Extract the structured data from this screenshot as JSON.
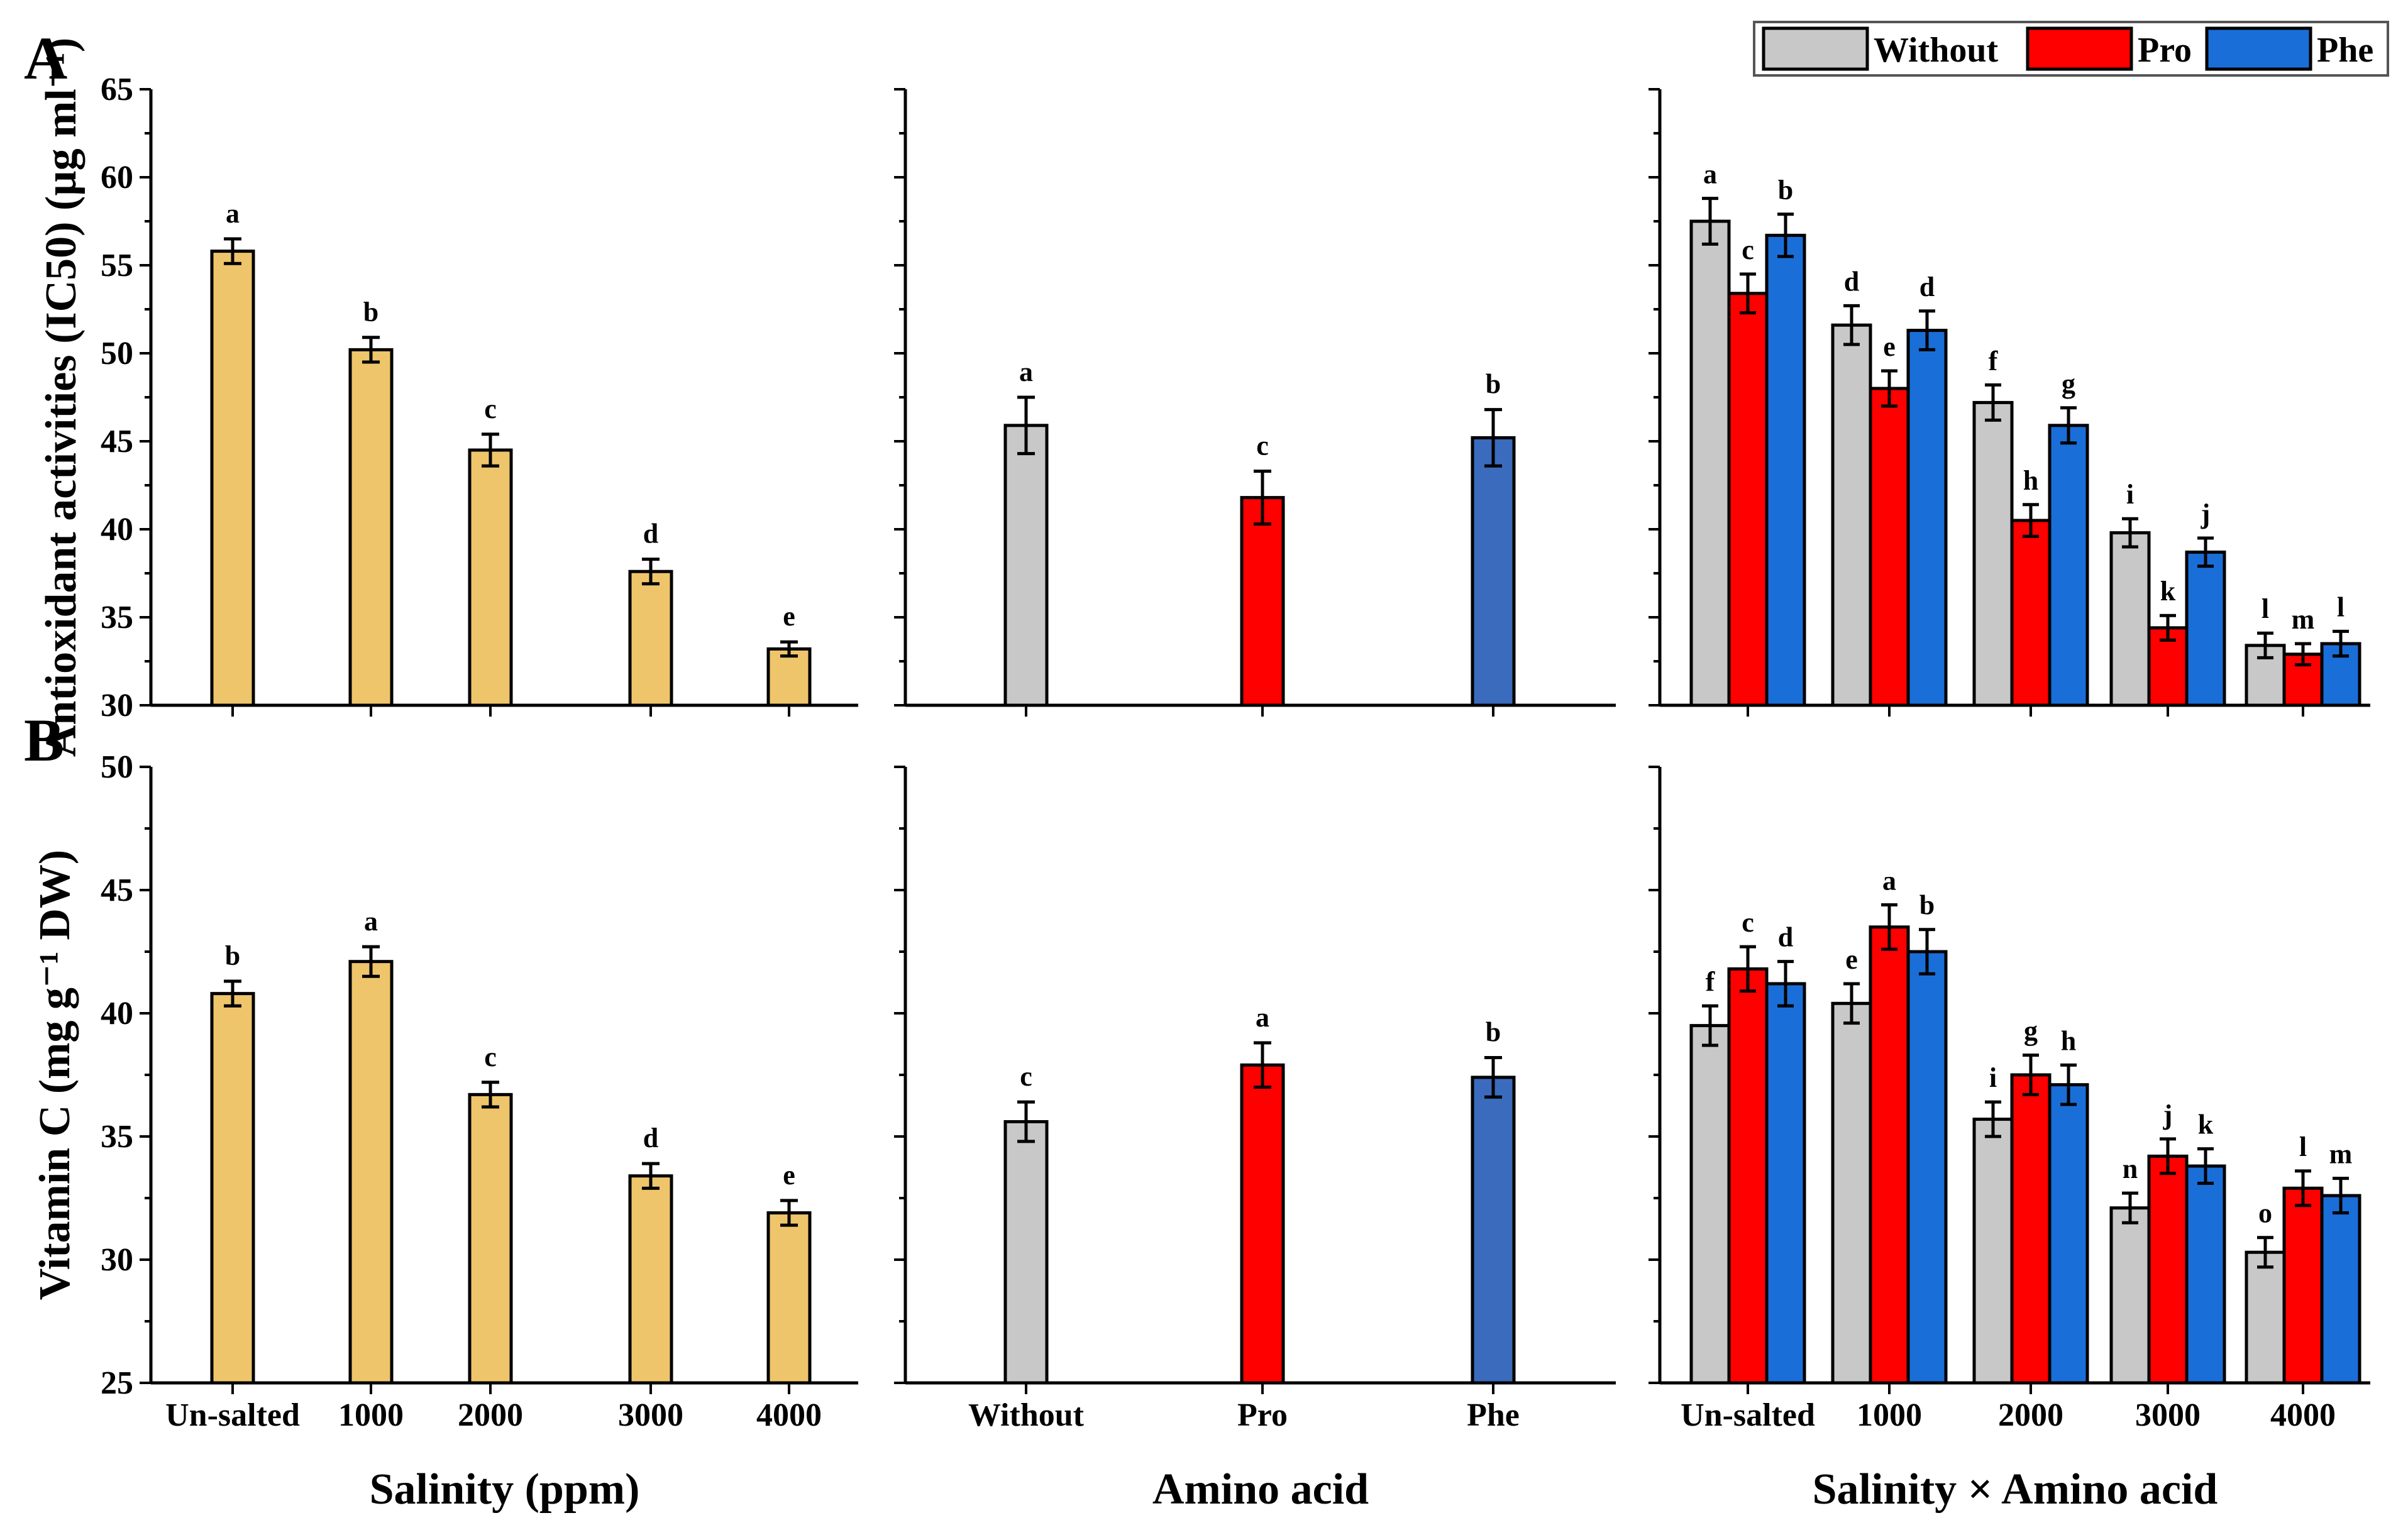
{
  "figure": {
    "panel_labels": [
      "A",
      "B"
    ],
    "xlabels": [
      "Salinity (ppm)",
      "Amino acid",
      "Salinity × Amino acid"
    ]
  },
  "legend": {
    "items": [
      {
        "label": "Without",
        "color": "#c8c8c8"
      },
      {
        "label": "Pro",
        "color": "#ff0000"
      },
      {
        "label": "Phe",
        "color": "#1a6ed8"
      }
    ]
  },
  "colors": {
    "salinity": "#efc56b",
    "without": "#c8c8c8",
    "pro": "#ff0000",
    "phe_main": "#3a6bbd",
    "phe_inter": "#1a6ed8"
  },
  "chart_data": [
    {
      "type": "bar",
      "panel": "A",
      "title": "",
      "ylabel": "Antioxidant activities (IC50) (µg ml⁻¹)",
      "ylim": [
        30,
        65
      ],
      "yticks": [
        30,
        35,
        40,
        45,
        50,
        55,
        60,
        65
      ],
      "subplots": [
        {
          "xlabel": "Salinity (ppm)",
          "categories": [
            "Un-salted",
            "1000",
            "2000",
            "3000",
            "4000"
          ],
          "values": [
            55.8,
            50.2,
            44.5,
            37.6,
            33.2
          ],
          "errors": [
            0.7,
            0.7,
            0.9,
            0.7,
            0.4
          ],
          "letters": [
            "a",
            "b",
            "c",
            "d",
            "e"
          ]
        },
        {
          "xlabel": "Amino acid",
          "categories": [
            "Without",
            "Pro",
            "Phe"
          ],
          "values": [
            45.9,
            41.8,
            45.2
          ],
          "errors": [
            1.6,
            1.5,
            1.6
          ],
          "letters": [
            "a",
            "c",
            "b"
          ]
        },
        {
          "xlabel": "Salinity × Amino acid",
          "categories": [
            "Un-salted",
            "1000",
            "2000",
            "3000",
            "4000"
          ],
          "series": [
            {
              "name": "Without",
              "values": [
                57.5,
                51.6,
                47.2,
                39.8,
                33.4
              ],
              "errors": [
                1.3,
                1.1,
                1.0,
                0.8,
                0.7
              ],
              "letters": [
                "a",
                "d",
                "f",
                "i",
                "l"
              ]
            },
            {
              "name": "Pro",
              "values": [
                53.4,
                48.0,
                40.5,
                34.4,
                32.9
              ],
              "errors": [
                1.1,
                1.0,
                0.9,
                0.7,
                0.6
              ],
              "letters": [
                "c",
                "e",
                "h",
                "k",
                "m"
              ]
            },
            {
              "name": "Phe",
              "values": [
                56.7,
                51.3,
                45.9,
                38.7,
                33.5
              ],
              "errors": [
                1.2,
                1.1,
                1.0,
                0.8,
                0.7
              ],
              "letters": [
                "b",
                "d",
                "g",
                "j",
                "l"
              ]
            }
          ]
        }
      ]
    },
    {
      "type": "bar",
      "panel": "B",
      "title": "",
      "ylabel": "Vitamin C (mg g⁻¹ DW)",
      "ylim": [
        25,
        50
      ],
      "yticks": [
        25,
        30,
        35,
        40,
        45,
        50
      ],
      "subplots": [
        {
          "xlabel": "Salinity (ppm)",
          "categories": [
            "Un-salted",
            "1000",
            "2000",
            "3000",
            "4000"
          ],
          "values": [
            40.8,
            42.1,
            36.7,
            33.4,
            31.9
          ],
          "errors": [
            0.5,
            0.6,
            0.5,
            0.5,
            0.5
          ],
          "letters": [
            "b",
            "a",
            "c",
            "d",
            "e"
          ]
        },
        {
          "xlabel": "Amino acid",
          "categories": [
            "Without",
            "Pro",
            "Phe"
          ],
          "values": [
            35.6,
            37.9,
            37.4
          ],
          "errors": [
            0.8,
            0.9,
            0.8
          ],
          "letters": [
            "c",
            "a",
            "b"
          ]
        },
        {
          "xlabel": "Salinity × Amino acid",
          "categories": [
            "Un-salted",
            "1000",
            "2000",
            "3000",
            "4000"
          ],
          "series": [
            {
              "name": "Without",
              "values": [
                39.5,
                40.4,
                35.7,
                32.1,
                30.3
              ],
              "errors": [
                0.8,
                0.8,
                0.7,
                0.6,
                0.6
              ],
              "letters": [
                "f",
                "e",
                "i",
                "n",
                "o"
              ]
            },
            {
              "name": "Pro",
              "values": [
                41.8,
                43.5,
                37.5,
                34.2,
                32.9
              ],
              "errors": [
                0.9,
                0.9,
                0.8,
                0.7,
                0.7
              ],
              "letters": [
                "c",
                "a",
                "g",
                "j",
                "l"
              ]
            },
            {
              "name": "Phe",
              "values": [
                41.2,
                42.5,
                37.1,
                33.8,
                32.6
              ],
              "errors": [
                0.9,
                0.9,
                0.8,
                0.7,
                0.7
              ],
              "letters": [
                "d",
                "b",
                "h",
                "k",
                "m"
              ]
            }
          ]
        }
      ]
    }
  ]
}
